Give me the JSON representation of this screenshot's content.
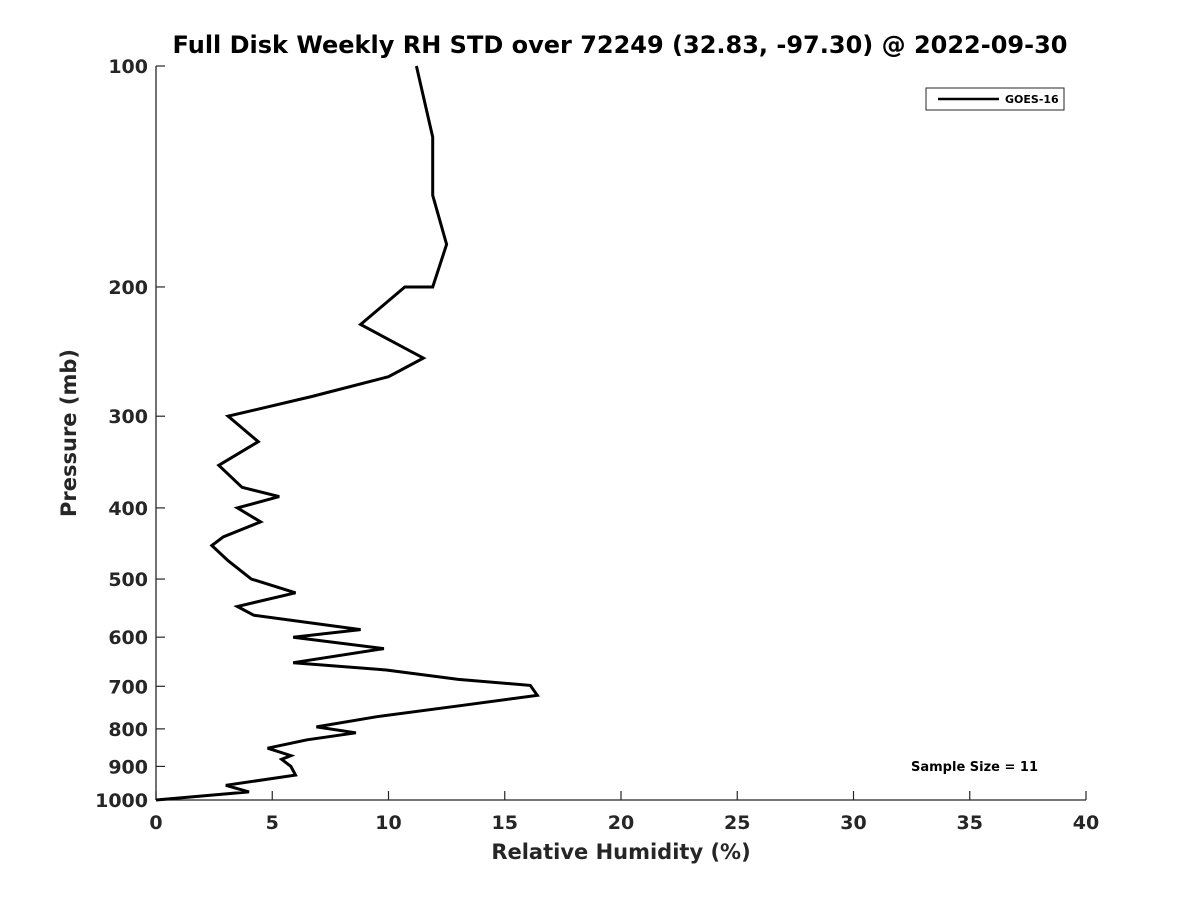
{
  "chart_data": {
    "type": "line",
    "title": "Full Disk Weekly RH STD over 72249 (32.83, -97.30) @ 2022-09-30",
    "xlabel": "Relative Humidity (%)",
    "ylabel": "Pressure (mb)",
    "xlim": [
      0,
      40
    ],
    "ylim": [
      100,
      1000
    ],
    "y_scale": "log",
    "y_reversed": true,
    "x_ticks": [
      0,
      5,
      10,
      15,
      20,
      25,
      30,
      35,
      40
    ],
    "y_ticks": [
      100,
      200,
      300,
      400,
      500,
      600,
      700,
      800,
      900,
      1000
    ],
    "grid": false,
    "legend_position": "top-right",
    "series": [
      {
        "name": "GOES-16",
        "color": "#000000",
        "points": [
          [
            11.2,
            100
          ],
          [
            11.9,
            125
          ],
          [
            11.9,
            150
          ],
          [
            12.5,
            175
          ],
          [
            11.9,
            200
          ],
          [
            10.7,
            200
          ],
          [
            8.8,
            225
          ],
          [
            11.5,
            250
          ],
          [
            10.0,
            265
          ],
          [
            6.7,
            282
          ],
          [
            3.1,
            300
          ],
          [
            4.4,
            325
          ],
          [
            2.7,
            350
          ],
          [
            3.7,
            375
          ],
          [
            5.3,
            386
          ],
          [
            3.5,
            400
          ],
          [
            4.5,
            418
          ],
          [
            2.9,
            438
          ],
          [
            2.4,
            450
          ],
          [
            3.1,
            472
          ],
          [
            4.1,
            500
          ],
          [
            6.0,
            522
          ],
          [
            3.5,
            545
          ],
          [
            4.2,
            560
          ],
          [
            8.8,
            586
          ],
          [
            5.9,
            600
          ],
          [
            9.8,
            622
          ],
          [
            5.9,
            650
          ],
          [
            9.9,
            665
          ],
          [
            13.0,
            685
          ],
          [
            16.1,
            698
          ],
          [
            16.4,
            720
          ],
          [
            13.2,
            743
          ],
          [
            9.5,
            770
          ],
          [
            6.9,
            795
          ],
          [
            8.6,
            810
          ],
          [
            6.5,
            828
          ],
          [
            4.8,
            850
          ],
          [
            5.8,
            870
          ],
          [
            5.4,
            880
          ],
          [
            5.8,
            900
          ],
          [
            6.0,
            925
          ],
          [
            3.0,
            955
          ],
          [
            4.0,
            975
          ],
          [
            0.0,
            1000
          ]
        ]
      }
    ],
    "annotations": [
      "Sample Size = 11"
    ]
  }
}
